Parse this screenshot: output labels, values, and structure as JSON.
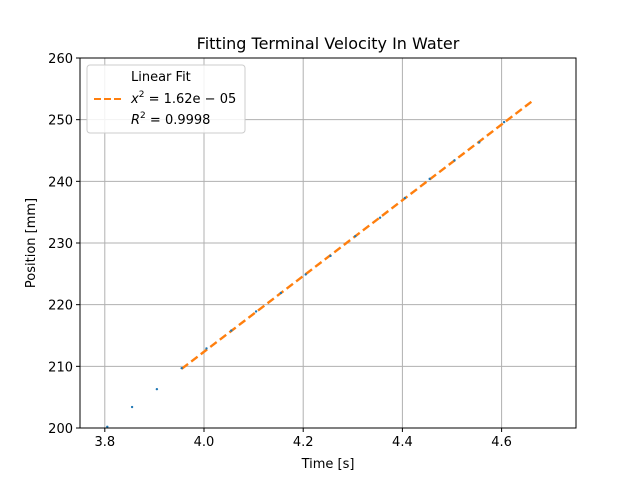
{
  "chart_data": {
    "type": "scatter",
    "title": "Fitting Terminal Velocity In Water",
    "xlabel": "Time [s]",
    "ylabel": "Position [mm]",
    "xlim": [
      3.75,
      4.75
    ],
    "ylim": [
      200,
      260
    ],
    "xticks": [
      3.8,
      4.0,
      4.2,
      4.4,
      4.6
    ],
    "xtick_labels": [
      "3.8",
      "4.0",
      "4.2",
      "4.4",
      "4.6"
    ],
    "yticks": [
      200,
      210,
      220,
      230,
      240,
      250,
      260
    ],
    "ytick_labels": [
      "200",
      "210",
      "220",
      "230",
      "240",
      "250",
      "260"
    ],
    "grid": true,
    "legend_position": "upper-left",
    "series": [
      {
        "kind": "scatter",
        "color": "#1f77b4",
        "x": [
          3.805,
          3.855,
          3.905,
          3.955,
          4.005,
          4.055,
          4.105,
          4.155,
          4.205,
          4.255,
          4.305,
          4.355,
          4.405,
          4.455,
          4.505,
          4.555,
          4.605
        ],
        "y": [
          200.2,
          203.4,
          206.3,
          209.7,
          212.9,
          215.8,
          218.9,
          221.9,
          224.9,
          227.9,
          231.1,
          234.1,
          237.3,
          240.4,
          243.4,
          246.3,
          249.6
        ]
      },
      {
        "kind": "line",
        "style": "dashed",
        "color": "#ff7f0e",
        "x": [
          3.955,
          4.66
        ],
        "y": [
          209.6,
          252.9
        ]
      }
    ],
    "legend": {
      "title": "Linear Fit",
      "lines": [
        {
          "prefix": "x",
          "sup": "2",
          "suffix": " = 1.62e − 05"
        },
        {
          "prefix": "R",
          "sup": "2",
          "suffix": " = 0.9998"
        }
      ]
    }
  }
}
